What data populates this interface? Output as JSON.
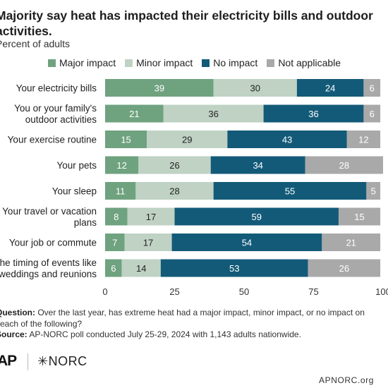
{
  "header": {
    "title_line1": "Majority say heat has impacted their electricity bills and outdoor",
    "title_line2": "activities.",
    "subtitle": "Percent of adults"
  },
  "colors": {
    "major": "#6fa27f",
    "minor": "#bfd2c4",
    "none": "#135a78",
    "na": "#a9a9a9",
    "text_light": "#ffffff",
    "text_dark": "#222222"
  },
  "chart_data": {
    "type": "bar",
    "orientation": "horizontal",
    "stacked": true,
    "title": "Majority say heat has impacted their electricity bills and outdoor activities.",
    "subtitle": "Percent of adults",
    "categories": [
      [
        "Your electricity bills"
      ],
      [
        "You or your family's",
        "outdoor activities"
      ],
      [
        "Your exercise routine"
      ],
      [
        "Your pets"
      ],
      [
        "Your sleep"
      ],
      [
        "Your travel or vacation",
        "plans"
      ],
      [
        "Your job or commute"
      ],
      [
        "The timing of events like",
        "weddings and reunions"
      ]
    ],
    "series": [
      {
        "name": "Major impact",
        "values": [
          39,
          21,
          15,
          12,
          11,
          8,
          7,
          6
        ]
      },
      {
        "name": "Minor impact",
        "values": [
          30,
          36,
          29,
          26,
          28,
          17,
          17,
          14
        ]
      },
      {
        "name": "No impact",
        "values": [
          24,
          36,
          43,
          34,
          55,
          59,
          54,
          53
        ]
      },
      {
        "name": "Not applicable",
        "values": [
          6,
          6,
          12,
          28,
          5,
          15,
          21,
          26
        ]
      }
    ],
    "xlim": [
      0,
      100
    ],
    "xticks": [
      "0",
      "25",
      "50",
      "75",
      "100"
    ],
    "legend_position": "top",
    "grid": false
  },
  "notes": {
    "question_label": "Question:",
    "question_line1": " Over the last year, has extreme heat had a major impact, minor impact, or no impact on",
    "question_line2": "each of the following?",
    "source_label": "Source:",
    "source_text": " AP-NORC poll conducted July 25-29, 2024 with 1,143 adults nationwide."
  },
  "footer": {
    "logo_ap": "AP",
    "logo_norc": "NORC",
    "url": "APNORC.org"
  }
}
